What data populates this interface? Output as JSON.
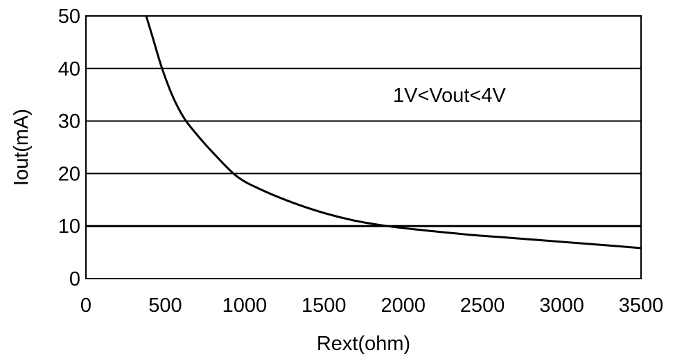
{
  "chart_data": {
    "type": "line",
    "xlabel": "Rext(ohm)",
    "ylabel": "Iout(mA)",
    "xlim": [
      0,
      3500
    ],
    "ylim": [
      0,
      50
    ],
    "x_ticks": [
      "0",
      "500",
      "1000",
      "1500",
      "2000",
      "2500",
      "3000",
      "3500"
    ],
    "y_ticks": [
      "0",
      "10",
      "20",
      "30",
      "40",
      "50"
    ],
    "grid": "horizontal",
    "annotation": "1V<Vout<4V",
    "series": [
      {
        "x": [
          380,
          420,
          480,
          550,
          620,
          700,
          800,
          950,
          1100,
          1300,
          1500,
          1700,
          1900,
          2100,
          2400,
          2700,
          3000,
          3300,
          3500
        ],
        "y": [
          50,
          46,
          40,
          34.5,
          30.5,
          27.4,
          24,
          19.5,
          17,
          14.5,
          12.5,
          11,
          10,
          9.3,
          8.4,
          7.7,
          7,
          6.3,
          5.8
        ]
      }
    ]
  }
}
